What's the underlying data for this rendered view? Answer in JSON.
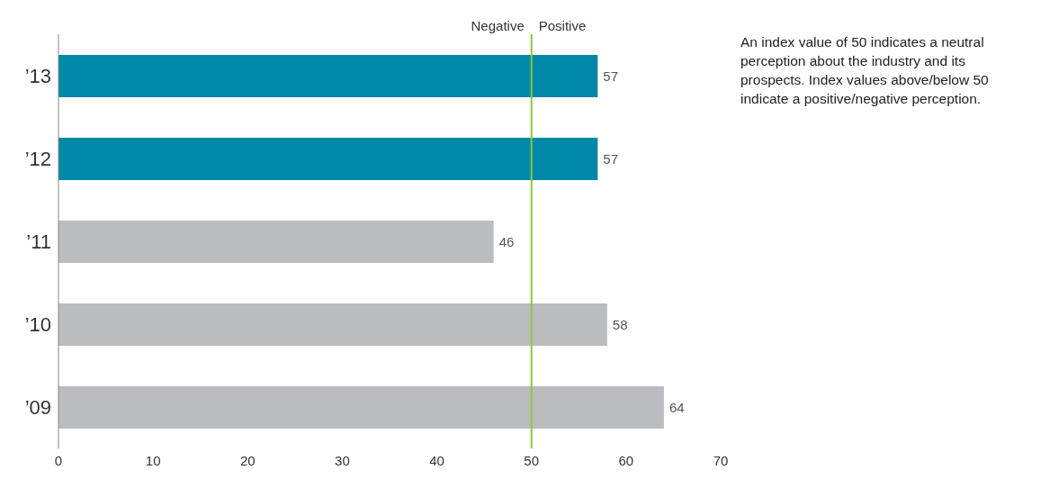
{
  "chart_data": {
    "type": "bar",
    "orientation": "horizontal",
    "categories": [
      "’13",
      "’12",
      "’11",
      "’10",
      "’09"
    ],
    "values": [
      57,
      57,
      46,
      58,
      64
    ],
    "colors": [
      "#0088a7",
      "#0088a7",
      "#bbbcc0",
      "#bbbcc0",
      "#bbbcc0"
    ],
    "xlim": [
      0,
      70
    ],
    "xticks": [
      0,
      10,
      20,
      30,
      40,
      50,
      60,
      70
    ],
    "data_labels": true,
    "grid": false,
    "legend": false,
    "ref_lines": [
      {
        "axis": "x",
        "value": 50,
        "color": "#8dc63f"
      }
    ],
    "annotations": [
      "Negative",
      "Positive",
      "An index value of 50 indicates a neutral perception about the industry and its prospects. Index values above/below 50 indicate a positive/negative perception."
    ]
  }
}
